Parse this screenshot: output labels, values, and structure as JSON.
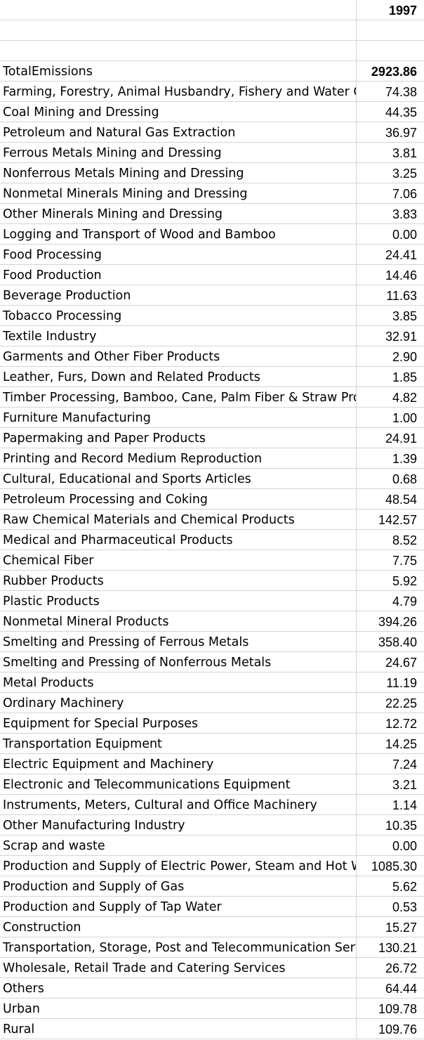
{
  "header": {
    "year": "1997"
  },
  "total": {
    "label": "TotalEmissions",
    "value": "2923.86"
  },
  "rows": [
    {
      "label": "Farming, Forestry, Animal Husbandry, Fishery and Water Conservancy",
      "value": "74.38"
    },
    {
      "label": "Coal Mining and Dressing",
      "value": "44.35"
    },
    {
      "label": "Petroleum and Natural Gas Extraction",
      "value": "36.97"
    },
    {
      "label": "Ferrous Metals Mining and Dressing",
      "value": "3.81"
    },
    {
      "label": "Nonferrous Metals Mining and Dressing",
      "value": "3.25"
    },
    {
      "label": "Nonmetal Minerals Mining and Dressing",
      "value": "7.06"
    },
    {
      "label": "Other Minerals Mining and Dressing",
      "value": "3.83"
    },
    {
      "label": "Logging and Transport of Wood and Bamboo",
      "value": "0.00"
    },
    {
      "label": "Food Processing",
      "value": "24.41"
    },
    {
      "label": "Food Production",
      "value": "14.46"
    },
    {
      "label": "Beverage Production",
      "value": "11.63"
    },
    {
      "label": "Tobacco Processing",
      "value": "3.85"
    },
    {
      "label": "Textile Industry",
      "value": "32.91"
    },
    {
      "label": "Garments and Other Fiber Products",
      "value": "2.90"
    },
    {
      "label": "Leather, Furs, Down and Related Products",
      "value": "1.85"
    },
    {
      "label": "Timber Processing, Bamboo, Cane, Palm Fiber & Straw Products",
      "value": "4.82"
    },
    {
      "label": "Furniture Manufacturing",
      "value": "1.00"
    },
    {
      "label": "Papermaking and Paper Products",
      "value": "24.91"
    },
    {
      "label": "Printing and Record Medium Reproduction",
      "value": "1.39"
    },
    {
      "label": "Cultural, Educational and Sports Articles",
      "value": "0.68"
    },
    {
      "label": "Petroleum Processing and Coking",
      "value": "48.54"
    },
    {
      "label": "Raw Chemical Materials and Chemical Products",
      "value": "142.57"
    },
    {
      "label": "Medical and Pharmaceutical Products",
      "value": "8.52"
    },
    {
      "label": "Chemical Fiber",
      "value": "7.75"
    },
    {
      "label": "Rubber Products",
      "value": "5.92"
    },
    {
      "label": "Plastic Products",
      "value": "4.79"
    },
    {
      "label": "Nonmetal Mineral Products",
      "value": "394.26"
    },
    {
      "label": "Smelting and Pressing of Ferrous Metals",
      "value": "358.40"
    },
    {
      "label": "Smelting and Pressing of Nonferrous Metals",
      "value": "24.67"
    },
    {
      "label": "Metal Products",
      "value": "11.19"
    },
    {
      "label": "Ordinary Machinery",
      "value": "22.25"
    },
    {
      "label": "Equipment for Special Purposes",
      "value": "12.72"
    },
    {
      "label": "Transportation Equipment",
      "value": "14.25"
    },
    {
      "label": "Electric Equipment and Machinery",
      "value": "7.24"
    },
    {
      "label": "Electronic and Telecommunications Equipment",
      "value": "3.21"
    },
    {
      "label": "Instruments, Meters, Cultural and Office Machinery",
      "value": "1.14"
    },
    {
      "label": "Other Manufacturing Industry",
      "value": "10.35"
    },
    {
      "label": "Scrap and waste",
      "value": "0.00"
    },
    {
      "label": "Production and Supply of Electric Power, Steam and Hot Water",
      "value": "1085.30"
    },
    {
      "label": "Production and Supply of Gas",
      "value": "5.62"
    },
    {
      "label": "Production and Supply of Tap Water",
      "value": "0.53"
    },
    {
      "label": "Construction",
      "value": "15.27"
    },
    {
      "label": "Transportation, Storage, Post and Telecommunication Services",
      "value": "130.21"
    },
    {
      "label": "Wholesale, Retail Trade and Catering Services",
      "value": "26.72"
    },
    {
      "label": "Others",
      "value": "64.44"
    },
    {
      "label": "Urban",
      "value": "109.78"
    },
    {
      "label": "Rural",
      "value": "109.76"
    }
  ]
}
